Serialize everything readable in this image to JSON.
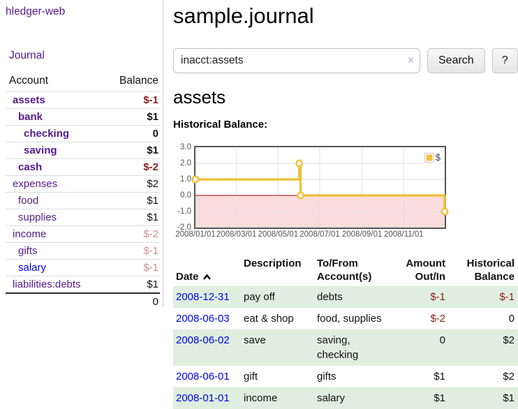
{
  "app": {
    "brand": "hledger-web"
  },
  "sidebar": {
    "journal_label": "Journal",
    "accounts": {
      "headers": {
        "account": "Account",
        "balance": "Balance"
      },
      "rows": [
        {
          "name": "assets",
          "balance": "$-1",
          "level": 1,
          "bold": true,
          "balance_class": "neg"
        },
        {
          "name": "bank",
          "balance": "$1",
          "level": 2,
          "bold": true,
          "balance_class": "pos"
        },
        {
          "name": "checking",
          "balance": "0",
          "level": 3,
          "bold": true,
          "balance_class": "pos"
        },
        {
          "name": "saving",
          "balance": "$1",
          "level": 3,
          "bold": true,
          "balance_class": "pos"
        },
        {
          "name": "cash",
          "balance": "$-2",
          "level": 2,
          "bold": true,
          "balance_class": "neg"
        },
        {
          "name": "expenses",
          "balance": "$2",
          "level": 1,
          "bold": false,
          "balance_class": "pos"
        },
        {
          "name": "food",
          "balance": "$1",
          "level": 2,
          "bold": false,
          "balance_class": "pos"
        },
        {
          "name": "supplies",
          "balance": "$1",
          "level": 2,
          "bold": false,
          "balance_class": "pos"
        },
        {
          "name": "income",
          "balance": "$-2",
          "level": 1,
          "bold": false,
          "balance_class": "negdim"
        },
        {
          "name": "gifts",
          "balance": "$-1",
          "level": 2,
          "bold": false,
          "balance_class": "negdim"
        },
        {
          "name": "salary",
          "balance": "$-1",
          "level": 2,
          "bold": false,
          "balance_class": "negdim",
          "link": "blue"
        },
        {
          "name": "liabilities:debts",
          "balance": "$1",
          "level": 1,
          "bold": false,
          "balance_class": "pos"
        }
      ],
      "total": "0"
    }
  },
  "main": {
    "title": "sample.journal",
    "search": {
      "value": "inacct:assets",
      "clear_glyph": "×",
      "button_label": "Search",
      "help_label": "?"
    },
    "account_heading": "assets",
    "chart_heading": "Historical Balance:"
  },
  "chart_data": {
    "type": "line",
    "step": true,
    "title": "Historical Balance",
    "legend": [
      {
        "label": "$",
        "color": "#edc240"
      }
    ],
    "series": [
      {
        "name": "$",
        "points": [
          {
            "x": "2008-01-01",
            "y": 1
          },
          {
            "x": "2008-06-01",
            "y": 2
          },
          {
            "x": "2008-06-03",
            "y": 0
          },
          {
            "x": "2008-12-31",
            "y": -1
          }
        ]
      }
    ],
    "x_range": [
      "2008-01-01",
      "2008-12-31"
    ],
    "x_ticks": [
      "2008/01/01",
      "2008/03/01",
      "2008/05/01",
      "2008/07/01",
      "2008/09/01",
      "2008/11/01"
    ],
    "y_ticks": [
      3.0,
      2.0,
      1.0,
      0.0,
      -1.0,
      -2.0
    ],
    "ylim": [
      -2,
      3
    ],
    "grid": true,
    "legend_position": "top-right",
    "colors": {
      "line": "#edc240",
      "marker_fill": "#ffffff",
      "negative_fill": "#fbdcdc",
      "zero_line": "#a80000",
      "grid": "#e2e2e2",
      "border": "#555555"
    }
  },
  "register": {
    "headers": {
      "date": "Date",
      "description": "Description",
      "tofrom": "To/From\nAccount(s)",
      "amount": "Amount\nOut/In",
      "balance": "Historical\nBalance"
    },
    "rows": [
      {
        "date": "2008-12-31",
        "description": "pay off",
        "accounts": "debts",
        "amount": "$-1",
        "amount_neg": true,
        "balance": "$-1",
        "balance_neg": true,
        "green": true
      },
      {
        "date": "2008-06-03",
        "description": "eat & shop",
        "accounts": "food, supplies",
        "amount": "$-2",
        "amount_neg": true,
        "balance": "0",
        "balance_neg": false,
        "green": false
      },
      {
        "date": "2008-06-02",
        "description": "save",
        "accounts": "saving,\nchecking",
        "amount": "0",
        "amount_neg": false,
        "balance": "$2",
        "balance_neg": false,
        "green": true
      },
      {
        "date": "2008-06-01",
        "description": "gift",
        "accounts": "gifts",
        "amount": "$1",
        "amount_neg": false,
        "balance": "$2",
        "balance_neg": false,
        "green": false
      },
      {
        "date": "2008-01-01",
        "description": "income",
        "accounts": "salary",
        "amount": "$1",
        "amount_neg": false,
        "balance": "$1",
        "balance_neg": false,
        "green": true
      }
    ]
  }
}
